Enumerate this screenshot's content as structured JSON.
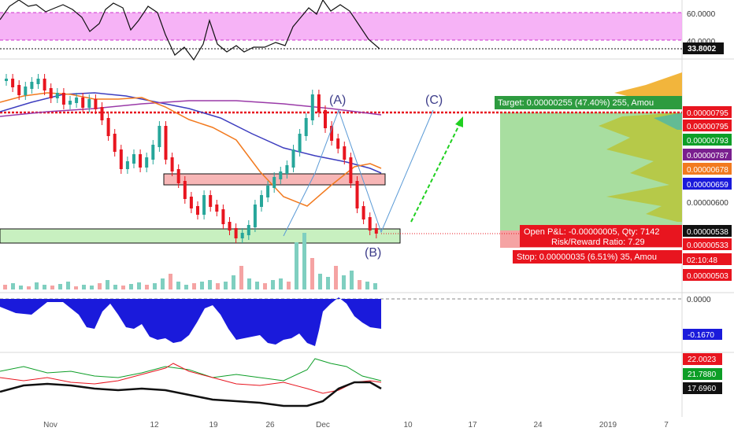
{
  "chart_data": {
    "type": "candlestick",
    "title": "",
    "x_axis_ticks": [
      "Nov",
      "12",
      "19",
      "26",
      "Dec",
      "10",
      "17",
      "24",
      "2019",
      "7"
    ],
    "rsi_panel": {
      "levels": [
        60.0,
        40.0
      ],
      "tick_labels": [
        "60.0000",
        "40.0000"
      ],
      "current_value": 33.8002,
      "current_label": "33.8002",
      "band_color": "#f4a6f4"
    },
    "price_panel": {
      "candles": [
        [
          1,
          1,
          0
        ],
        [
          1,
          0,
          0
        ],
        [
          1,
          1,
          0
        ],
        [
          1,
          0,
          0
        ],
        [
          1,
          1,
          0
        ],
        [
          0,
          1,
          0
        ],
        [
          1,
          0,
          1
        ],
        [
          0,
          1,
          0
        ],
        [
          1,
          0,
          0
        ],
        [
          0,
          0,
          1
        ],
        [
          0,
          -1,
          0
        ],
        [
          1,
          -1,
          0
        ],
        [
          0,
          -2,
          -1
        ],
        [
          -1,
          -2,
          -1
        ],
        [
          -1,
          -2,
          -2
        ],
        [
          -2,
          -3,
          -2
        ],
        [
          -2,
          -2,
          -1
        ],
        [
          -1,
          -3,
          -3
        ],
        [
          -3,
          -2,
          -2
        ],
        [
          -1,
          -1,
          -1
        ],
        [
          -2,
          -3,
          -3
        ],
        [
          -2,
          -2,
          -1
        ],
        [
          -1,
          -2,
          -2
        ],
        [
          -2,
          -3,
          -3
        ],
        [
          -3,
          -2,
          -2
        ],
        [
          -2,
          -2,
          -3
        ],
        [
          -3,
          -4,
          -4
        ],
        [
          -3,
          -3,
          -3
        ],
        [
          -3,
          -2,
          -2
        ],
        [
          -2,
          -2,
          -1
        ]
      ],
      "candle_note": "",
      "price_labels": [
        {
          "text": "0.00000795",
          "color": "#e8151f"
        },
        {
          "text": "0.00000795",
          "color": "#e8151f"
        },
        {
          "text": "0.00000793",
          "color": "#0d9e27"
        },
        {
          "text": "0.00000787",
          "color": "#7a1f8f"
        },
        {
          "text": "0.00000678",
          "color": "#f27a1f"
        },
        {
          "text": "0.00000659",
          "color": "#1a1adb"
        },
        {
          "text": "0.00000600",
          "color": null
        },
        {
          "text": "0.00000538",
          "color": "#111111"
        },
        {
          "text": "0.00000533",
          "color": "#e8151f"
        },
        {
          "text": "02:10:48",
          "color": "#e8151f"
        },
        {
          "text": "0.00000503",
          "color": "#e8151f"
        }
      ],
      "wave_labels": [
        "(A)",
        "(B)",
        "(C)"
      ],
      "target_label": "Target: 0.00000255 (47.40%) 255, Amou",
      "open_pl_label": "Open P&L: -0.00000005, Qty: 7142",
      "risk_reward_label": "Risk/Reward Ratio: 7.29",
      "stop_label": "Stop: 0.00000035 (6.51%) 35, Amou",
      "target_color": "#2d9b3f",
      "stop_color": "#e8151f",
      "resistance_zone_color": "#f7b6b6",
      "support_zone_color": "#c8f0c0"
    },
    "volume_panel": {
      "bars_up_color": "#7fcfc0",
      "bars_down_color": "#f5a3a3"
    },
    "oscillator_panel": {
      "zero_label": "0.0000",
      "current_label": "-0.1670",
      "fill_color": "#1a1adb"
    },
    "dmi_panel": {
      "labels": [
        {
          "text": "22.0023",
          "color": "#e8151f"
        },
        {
          "text": "21.7880",
          "color": "#0d9e27"
        },
        {
          "text": "17.6960",
          "color": "#111111"
        }
      ]
    }
  }
}
